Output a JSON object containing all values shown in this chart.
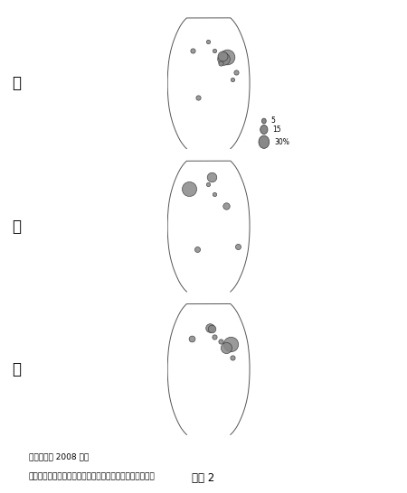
{
  "title": "図　 2",
  "panels": [
    "ア",
    "イ",
    "ウ"
  ],
  "caption_line1": "統計年次は 2008 年。",
  "caption_line2": "日本化学繊維協会『繊維ハンドブック』などにより作成。",
  "background_color": "#ffffff",
  "land_color": "#f0f0f0",
  "ocean_color": "#ffffff",
  "border_color": "#555555",
  "bubble_color": "#888888",
  "bubble_edge": "#333333",
  "legend_values": [
    30,
    15,
    5
  ],
  "legend_label": "%",
  "bubbles_A": [
    {
      "lon": 87,
      "lat": 33,
      "pct": 30
    },
    {
      "lon": 67,
      "lat": 30,
      "pct": 20
    },
    {
      "lon": 63,
      "lat": 34,
      "pct": 13
    },
    {
      "lon": 55,
      "lat": 25,
      "pct": 3
    },
    {
      "lon": 120,
      "lat": 14,
      "pct": 3
    },
    {
      "lon": -75,
      "lat": 40,
      "pct": 3
    },
    {
      "lon": -47,
      "lat": -18,
      "pct": 3
    },
    {
      "lon": 28,
      "lat": 40,
      "pct": 2
    },
    {
      "lon": 105,
      "lat": 5,
      "pct": 2
    },
    {
      "lon": -4,
      "lat": 52,
      "pct": 2
    }
  ],
  "bubbles_B": [
    {
      "lon": 15,
      "lat": 62,
      "pct": 12
    },
    {
      "lon": -95,
      "lat": 47,
      "pct": 28
    },
    {
      "lon": 78,
      "lat": 25,
      "pct": 6
    },
    {
      "lon": 130,
      "lat": -25,
      "pct": 4
    },
    {
      "lon": -53,
      "lat": -28,
      "pct": 4
    },
    {
      "lon": 28,
      "lat": 40,
      "pct": 2
    },
    {
      "lon": -4,
      "lat": 52,
      "pct": 2
    }
  ],
  "bubbles_C": [
    {
      "lon": 100,
      "lat": 31,
      "pct": 29
    },
    {
      "lon": 78,
      "lat": 27,
      "pct": 16
    },
    {
      "lon": 7,
      "lat": 51,
      "pct": 10
    },
    {
      "lon": 15,
      "lat": 50,
      "pct": 8
    },
    {
      "lon": -80,
      "lat": 38,
      "pct": 5
    },
    {
      "lon": 28,
      "lat": 40,
      "pct": 3
    },
    {
      "lon": 55,
      "lat": 35,
      "pct": 3
    },
    {
      "lon": 105,
      "lat": 14,
      "pct": 3
    }
  ]
}
